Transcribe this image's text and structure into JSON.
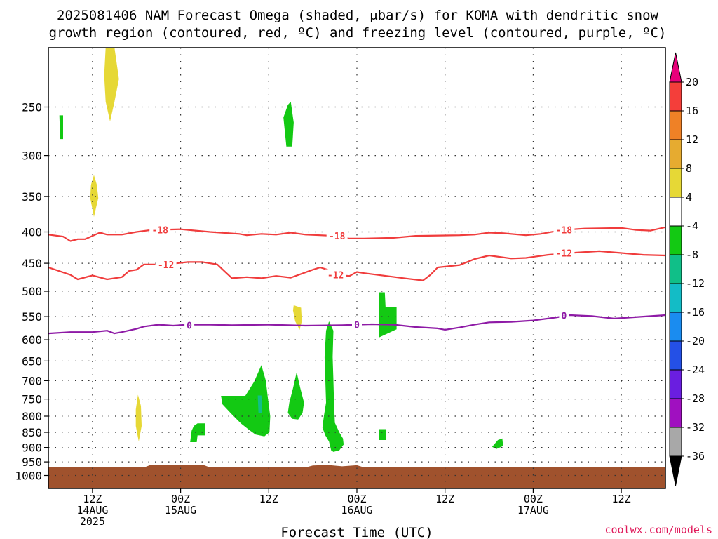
{
  "title_line1": "2025081406 NAM Forecast Omega (shaded, μbar/s) for KOMA with dendritic snow",
  "title_line2": "growth region (contoured, red, ºC) and freezing level (contoured, purple, ºC)",
  "credit": "coolwx.com/models",
  "chart_data": {
    "type": "heatmap",
    "xlabel": "Forecast Time (UTC)",
    "ylabel": "",
    "x_units": "forecast hour from 2025-08-14 06Z",
    "xlim": [
      0,
      84
    ],
    "ylim": [
      1050,
      200
    ],
    "y_scale": "log",
    "y_ticks": [
      250,
      300,
      350,
      400,
      450,
      500,
      550,
      600,
      650,
      700,
      750,
      800,
      850,
      900,
      950,
      1000
    ],
    "x_ticks": [
      {
        "hour": 6,
        "lines": [
          "12Z",
          "14AUG",
          "2025"
        ]
      },
      {
        "hour": 18,
        "lines": [
          "00Z",
          "15AUG"
        ]
      },
      {
        "hour": 30,
        "lines": [
          "12Z"
        ]
      },
      {
        "hour": 42,
        "lines": [
          "00Z",
          "16AUG"
        ]
      },
      {
        "hour": 54,
        "lines": [
          "12Z"
        ]
      },
      {
        "hour": 66,
        "lines": [
          "00Z",
          "17AUG"
        ]
      },
      {
        "hour": 78,
        "lines": [
          "12Z"
        ]
      }
    ],
    "grid": true,
    "colorbar": {
      "top_color": "#e8007a",
      "bottom_color": "#000000",
      "bins": [
        {
          "lo": 16,
          "hi": 20,
          "color": "#f43e3a"
        },
        {
          "lo": 12,
          "hi": 16,
          "color": "#ef8126"
        },
        {
          "lo": 8,
          "hi": 12,
          "color": "#e6ab30"
        },
        {
          "lo": 4,
          "hi": 8,
          "color": "#e6d836"
        },
        {
          "lo": -4,
          "hi": 4,
          "color": "#ffffff"
        },
        {
          "lo": -8,
          "hi": -4,
          "color": "#13c913"
        },
        {
          "lo": -12,
          "hi": -8,
          "color": "#10bf88"
        },
        {
          "lo": -16,
          "hi": -12,
          "color": "#13bcc6"
        },
        {
          "lo": -20,
          "hi": -16,
          "color": "#1a8cf0"
        },
        {
          "lo": -24,
          "hi": -20,
          "color": "#2450e6"
        },
        {
          "lo": -28,
          "hi": -24,
          "color": "#6a1ee0"
        },
        {
          "lo": -32,
          "hi": -28,
          "color": "#a010c0"
        },
        {
          "lo": -36,
          "hi": -32,
          "color": "#a8a8a8"
        }
      ],
      "tick_labels": [
        "20",
        "16",
        "12",
        "8",
        "4",
        "-4",
        "-8",
        "-12",
        "-16",
        "-20",
        "-24",
        "-28",
        "-32",
        "-36"
      ]
    },
    "terrain": {
      "color": "#a0522d",
      "points": [
        [
          0,
          970
        ],
        [
          13,
          970
        ],
        [
          14,
          960
        ],
        [
          21,
          960
        ],
        [
          22,
          970
        ],
        [
          35,
          970
        ],
        [
          36,
          963
        ],
        [
          38,
          961
        ],
        [
          40,
          966
        ],
        [
          42,
          962
        ],
        [
          43,
          970
        ],
        [
          84,
          970
        ]
      ]
    },
    "contours": [
      {
        "level": "-18",
        "color": "#f03c3c",
        "points": [
          [
            0,
            404
          ],
          [
            2,
            407
          ],
          [
            3,
            414
          ],
          [
            4,
            411
          ],
          [
            5,
            411
          ],
          [
            7,
            401
          ],
          [
            8,
            404
          ],
          [
            10,
            404
          ],
          [
            12,
            400
          ],
          [
            14,
            397
          ],
          [
            18,
            396
          ],
          [
            22,
            400
          ],
          [
            26,
            403
          ],
          [
            27,
            405
          ],
          [
            29,
            403
          ],
          [
            31,
            404
          ],
          [
            33,
            401
          ],
          [
            35,
            404
          ],
          [
            37,
            405
          ],
          [
            39,
            406
          ],
          [
            41,
            410
          ],
          [
            43,
            410
          ],
          [
            47,
            409
          ],
          [
            50,
            406
          ],
          [
            56,
            405
          ],
          [
            58,
            404
          ],
          [
            60,
            401
          ],
          [
            62,
            402
          ],
          [
            65,
            405
          ],
          [
            67,
            403
          ],
          [
            70,
            397
          ],
          [
            73,
            395
          ],
          [
            78,
            394
          ],
          [
            80,
            397
          ],
          [
            82,
            398
          ],
          [
            84,
            393
          ]
        ],
        "labels": [
          [
            15.2,
            397
          ],
          [
            39.3,
            406
          ],
          [
            70.2,
            397
          ]
        ]
      },
      {
        "level": "-12",
        "color": "#f03c3c",
        "points": [
          [
            0,
            457
          ],
          [
            3,
            470
          ],
          [
            4,
            478
          ],
          [
            6,
            471
          ],
          [
            8,
            478
          ],
          [
            10,
            474
          ],
          [
            11,
            463
          ],
          [
            12,
            461
          ],
          [
            13,
            452
          ],
          [
            16,
            452
          ],
          [
            19,
            448
          ],
          [
            21,
            448
          ],
          [
            23,
            452
          ],
          [
            24,
            464
          ],
          [
            25,
            476
          ],
          [
            27,
            474
          ],
          [
            29,
            476
          ],
          [
            31,
            472
          ],
          [
            33,
            475
          ],
          [
            36,
            461
          ],
          [
            37,
            457
          ],
          [
            38,
            461
          ],
          [
            39,
            470
          ],
          [
            41,
            472
          ],
          [
            42,
            465
          ],
          [
            43,
            467
          ],
          [
            46,
            472
          ],
          [
            49,
            477
          ],
          [
            51,
            480
          ],
          [
            52,
            470
          ],
          [
            53,
            457
          ],
          [
            56,
            453
          ],
          [
            58,
            443
          ],
          [
            60,
            437
          ],
          [
            63,
            442
          ],
          [
            65,
            441
          ],
          [
            68,
            436
          ],
          [
            71,
            433
          ],
          [
            75,
            430
          ],
          [
            78,
            433
          ],
          [
            81,
            436
          ],
          [
            84,
            437
          ]
        ],
        "labels": [
          [
            16.0,
            452
          ],
          [
            39.1,
            470
          ],
          [
            70.2,
            433
          ]
        ]
      },
      {
        "level": "0",
        "color": "#8e1aa6",
        "points": [
          [
            0,
            586
          ],
          [
            3,
            583
          ],
          [
            6,
            583
          ],
          [
            8,
            580
          ],
          [
            9,
            586
          ],
          [
            10,
            583
          ],
          [
            12,
            576
          ],
          [
            13,
            571
          ],
          [
            15,
            567
          ],
          [
            17,
            569
          ],
          [
            19,
            567
          ],
          [
            22,
            567
          ],
          [
            25,
            568
          ],
          [
            30,
            567
          ],
          [
            35,
            569
          ],
          [
            40,
            568
          ],
          [
            44,
            566
          ],
          [
            47,
            567
          ],
          [
            50,
            572
          ],
          [
            53,
            575
          ],
          [
            54,
            578
          ],
          [
            56,
            573
          ],
          [
            58,
            567
          ],
          [
            60,
            562
          ],
          [
            63,
            561
          ],
          [
            66,
            558
          ],
          [
            69,
            552
          ],
          [
            71,
            547
          ],
          [
            74,
            549
          ],
          [
            77,
            554
          ],
          [
            79,
            552
          ],
          [
            84,
            547
          ]
        ],
        "labels": [
          [
            19.2,
            568
          ],
          [
            42.0,
            567
          ],
          [
            70.2,
            548
          ]
        ]
      }
    ],
    "shaded_regions": [
      {
        "value": "4 to 8",
        "color": "#e6d836",
        "points": [
          [
            7.8,
            200
          ],
          [
            9.0,
            200
          ],
          [
            9.6,
            225
          ],
          [
            9.0,
            245
          ],
          [
            8.4,
            264
          ],
          [
            7.8,
            245
          ],
          [
            7.6,
            222
          ]
        ]
      },
      {
        "value": "4 to 8",
        "color": "#e6d836",
        "points": [
          [
            6.2,
            323
          ],
          [
            6.6,
            335
          ],
          [
            6.8,
            352
          ],
          [
            6.2,
            378
          ],
          [
            5.7,
            352
          ],
          [
            5.8,
            335
          ]
        ]
      },
      {
        "value": "4 to 8",
        "color": "#e6d836",
        "points": [
          [
            12.2,
            738
          ],
          [
            12.6,
            770
          ],
          [
            12.7,
            830
          ],
          [
            12.3,
            880
          ],
          [
            11.9,
            830
          ],
          [
            11.9,
            780
          ]
        ]
      },
      {
        "value": "4 to 8",
        "color": "#e6d836",
        "points": [
          [
            33.4,
            527
          ],
          [
            34.4,
            532
          ],
          [
            34.5,
            560
          ],
          [
            34.2,
            578
          ],
          [
            33.6,
            560
          ],
          [
            33.3,
            537
          ]
        ]
      },
      {
        "value": "-4 to -8",
        "color": "#13c913",
        "points": [
          [
            1.5,
            258
          ],
          [
            2.0,
            258
          ],
          [
            2.0,
            282
          ],
          [
            1.6,
            282
          ]
        ]
      },
      {
        "value": "-4 to -8",
        "color": "#13c913",
        "points": [
          [
            33.0,
            245
          ],
          [
            33.4,
            265
          ],
          [
            33.2,
            290
          ],
          [
            32.4,
            290
          ],
          [
            32.0,
            260
          ],
          [
            32.6,
            248
          ]
        ]
      },
      {
        "value": "-4 to -8",
        "color": "#13c913",
        "points": [
          [
            45.0,
            502
          ],
          [
            45.8,
            502
          ],
          [
            45.9,
            531
          ],
          [
            47.4,
            531
          ],
          [
            47.4,
            577
          ],
          [
            45.0,
            595
          ]
        ]
      },
      {
        "value": "-4 to -8",
        "color": "#13c913",
        "points": [
          [
            38.2,
            560
          ],
          [
            38.8,
            580
          ],
          [
            38.7,
            640
          ],
          [
            38.8,
            700
          ],
          [
            38.9,
            770
          ],
          [
            39.0,
            820
          ],
          [
            39.6,
            850
          ],
          [
            40.1,
            870
          ],
          [
            40.2,
            890
          ],
          [
            39.6,
            910
          ],
          [
            38.8,
            915
          ],
          [
            38.5,
            910
          ],
          [
            38.2,
            880
          ],
          [
            37.7,
            860
          ],
          [
            37.3,
            835
          ],
          [
            37.5,
            800
          ],
          [
            37.8,
            760
          ],
          [
            37.7,
            700
          ],
          [
            37.6,
            640
          ],
          [
            37.8,
            580
          ]
        ]
      },
      {
        "value": "-4 to -8",
        "color": "#13c913",
        "points": [
          [
            33.8,
            678
          ],
          [
            34.3,
            720
          ],
          [
            34.8,
            760
          ],
          [
            34.6,
            790
          ],
          [
            34.0,
            810
          ],
          [
            33.2,
            808
          ],
          [
            32.6,
            790
          ],
          [
            32.8,
            760
          ],
          [
            33.3,
            720
          ]
        ]
      },
      {
        "value": "-4 to -8",
        "color": "#13c913",
        "points": [
          [
            28.0,
            703
          ],
          [
            29.0,
            660
          ],
          [
            29.6,
            700
          ],
          [
            29.9,
            750
          ],
          [
            30.2,
            800
          ],
          [
            30.1,
            850
          ],
          [
            29.4,
            863
          ],
          [
            28.2,
            857
          ],
          [
            27.3,
            842
          ],
          [
            26.2,
            822
          ],
          [
            25.0,
            795
          ],
          [
            23.7,
            765
          ],
          [
            23.5,
            741
          ],
          [
            26.8,
            741
          ]
        ]
      },
      {
        "value": "-4 to -8",
        "color": "#13c913",
        "points": [
          [
            19.5,
            845
          ],
          [
            19.8,
            830
          ],
          [
            20.3,
            822
          ],
          [
            21.3,
            822
          ],
          [
            21.3,
            860
          ],
          [
            20.3,
            860
          ],
          [
            20.2,
            882
          ],
          [
            19.3,
            882
          ]
        ]
      },
      {
        "value": "-4 to -8",
        "color": "#13c913",
        "points": [
          [
            45.0,
            840
          ],
          [
            46.0,
            840
          ],
          [
            46.0,
            875
          ],
          [
            45.0,
            875
          ]
        ]
      },
      {
        "value": "-4 to -8",
        "color": "#13c913",
        "points": [
          [
            61.2,
            875
          ],
          [
            61.8,
            870
          ],
          [
            61.9,
            895
          ],
          [
            61.0,
            905
          ],
          [
            60.4,
            898
          ]
        ]
      },
      {
        "value": "-8 to -12",
        "color": "#10bf88",
        "points": [
          [
            28.5,
            740
          ],
          [
            29.0,
            740
          ],
          [
            29.1,
            790
          ],
          [
            28.6,
            790
          ]
        ]
      }
    ]
  }
}
